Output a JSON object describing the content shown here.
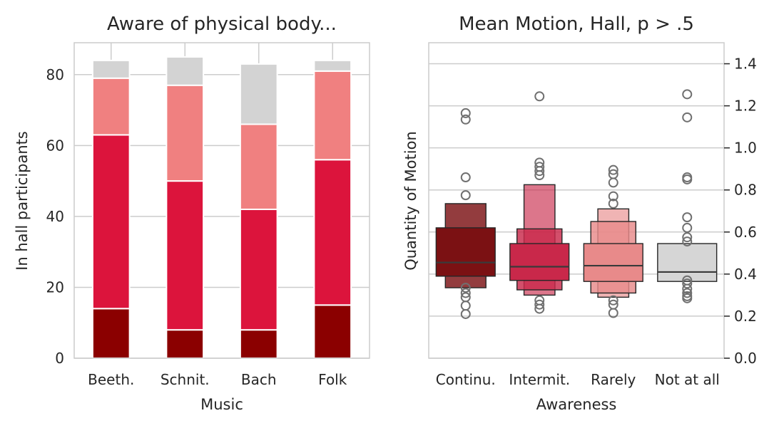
{
  "colors": {
    "continuously": "#8b0000",
    "intermittently": "#dc143c",
    "rarely": "#f08080",
    "not_at_all": "#d3d3d3",
    "grid": "#cccccc",
    "text": "#262626",
    "outlier": "#707070"
  },
  "chart_data": [
    {
      "type": "bar",
      "stacked": true,
      "title": "Aware of physical body...",
      "xlabel": "Music",
      "ylabel": "In hall participants",
      "categories": [
        "Beeth.",
        "Schnit.",
        "Bach",
        "Folk"
      ],
      "ylim": [
        0,
        89
      ],
      "yticks": [
        "0",
        "20",
        "40",
        "60",
        "80"
      ],
      "grid": true,
      "series": [
        {
          "values": [
            14,
            8,
            8,
            15
          ],
          "color": "#8b0000"
        },
        {
          "values": [
            49,
            42,
            34,
            41
          ],
          "color": "#dc143c"
        },
        {
          "values": [
            16,
            27,
            24,
            25
          ],
          "color": "#f08080"
        },
        {
          "values": [
            5,
            8,
            17,
            3
          ],
          "color": "#d3d3d3"
        }
      ]
    },
    {
      "type": "boxen",
      "title": "Mean Motion, Hall, p > .5",
      "xlabel": "Awareness",
      "ylabel": "Quantity of Motion",
      "categories": [
        "Continu.",
        "Intermit.",
        "Rarely",
        "Not at all"
      ],
      "ylim": [
        0,
        1.5
      ],
      "yticks": [
        "0.0",
        "0.2",
        "0.4",
        "0.6",
        "0.8",
        "1.0",
        "1.2",
        "1.4"
      ],
      "grid": true,
      "yaxis_side": "right",
      "groups": [
        {
          "color": "#7b1113",
          "median": 0.455,
          "boxes": [
            {
              "low": 0.39,
              "high": 0.62
            },
            {
              "low": 0.335,
              "high": 0.735
            }
          ],
          "outliers": [
            1.165,
            1.135,
            0.86,
            0.775,
            0.335,
            0.31,
            0.29,
            0.25,
            0.21
          ]
        },
        {
          "color": "#c9284a",
          "median": 0.435,
          "boxes": [
            {
              "low": 0.37,
              "high": 0.545
            },
            {
              "low": 0.325,
              "high": 0.615
            },
            {
              "low": 0.3,
              "high": 0.825
            }
          ],
          "outliers": [
            1.245,
            0.93,
            0.91,
            0.89,
            0.87,
            0.275,
            0.255,
            0.235
          ]
        },
        {
          "color": "#e88a8a",
          "median": 0.44,
          "boxes": [
            {
              "low": 0.365,
              "high": 0.545
            },
            {
              "low": 0.31,
              "high": 0.65
            },
            {
              "low": 0.29,
              "high": 0.71
            }
          ],
          "outliers": [
            0.895,
            0.875,
            0.835,
            0.77,
            0.735,
            0.275,
            0.255,
            0.215
          ]
        },
        {
          "color": "#d6d6d6",
          "median": 0.41,
          "boxes": [
            {
              "low": 0.365,
              "high": 0.545
            }
          ],
          "outliers": [
            1.255,
            1.145,
            0.86,
            0.85,
            0.67,
            0.62,
            0.575,
            0.555,
            0.37,
            0.355,
            0.33,
            0.31,
            0.295,
            0.285
          ]
        }
      ]
    }
  ]
}
